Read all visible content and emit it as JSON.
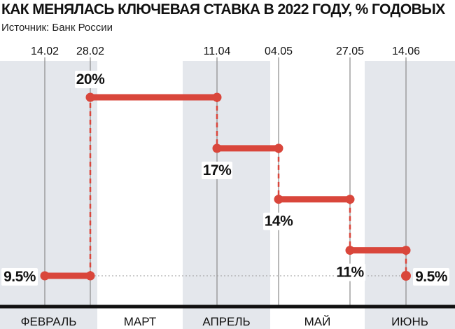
{
  "title": "КАК МЕНЯЛАСЬ КЛЮЧЕВАЯ СТАВКА В 2022 ГОДУ, % ГОДОВЫХ",
  "subtitle": "Источник: Банк России",
  "colors": {
    "accent": "#d9463b",
    "band": "#e4e7ec",
    "axis": "#111111",
    "gridline": "#8a8a8a",
    "text": "#111111"
  },
  "chart_data": {
    "type": "line",
    "step": true,
    "x_unit": "2022 dates",
    "y_unit": "% годовых",
    "months": [
      "ФЕВРАЛЬ",
      "МАРТ",
      "АПРЕЛЬ",
      "МАЙ",
      "ИЮНЬ"
    ],
    "change_dates": [
      "14.02",
      "28.02",
      "11.04",
      "04.05",
      "27.05",
      "14.06"
    ],
    "steps": [
      {
        "start": "14.02",
        "end": "28.02",
        "rate": 9.5,
        "label": "9.5%"
      },
      {
        "start": "28.02",
        "end": "11.04",
        "rate": 20,
        "label": "20%"
      },
      {
        "start": "11.04",
        "end": "04.05",
        "rate": 17,
        "label": "17%"
      },
      {
        "start": "04.05",
        "end": "27.05",
        "rate": 14,
        "label": "14%"
      },
      {
        "start": "27.05",
        "end": "14.06",
        "rate": 11,
        "label": "11%"
      },
      {
        "start": "14.06",
        "end": "14.06",
        "rate": 9.5,
        "label": "9.5%"
      }
    ],
    "reference_line": 9.5,
    "grid": true
  }
}
